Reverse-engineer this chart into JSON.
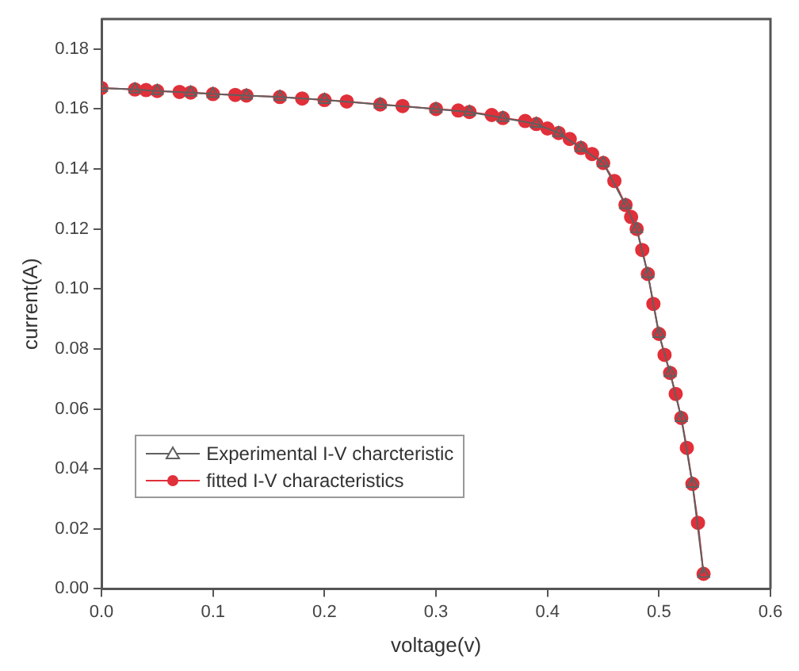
{
  "chart_data": {
    "type": "line",
    "xlabel": "voltage(v)",
    "ylabel": "current(A)",
    "xlim": [
      0,
      0.6
    ],
    "xticks": [
      {
        "value": 0,
        "label": "0.0"
      },
      0.1,
      0.2,
      0.3,
      0.4,
      0.5,
      {
        "value": 0.6,
        "label": "0.6"
      }
    ],
    "ylim": [
      0,
      0.19
    ],
    "yticks": [
      {
        "value": 0,
        "label": "0.00"
      },
      0.02,
      0.04,
      0.06,
      0.08,
      {
        "value": 0.1,
        "label": "0.10"
      },
      0.12,
      0.14,
      0.16,
      0.18
    ],
    "grid": false,
    "legend": "bottom left",
    "line_style": "solid",
    "series": [
      {
        "name": "Experimental I-V charcteristic",
        "color": "#606060",
        "marker": "triangle",
        "x": [
          0,
          0.03,
          0.05,
          0.08,
          0.1,
          0.13,
          0.16,
          0.2,
          0.25,
          0.3,
          0.33,
          0.36,
          0.39,
          0.41,
          0.43,
          0.45,
          0.47,
          0.48,
          0.49,
          0.5,
          0.51,
          0.52,
          0.53,
          0.54
        ],
        "values": [
          0.167,
          0.1665,
          0.166,
          0.1655,
          0.165,
          0.1645,
          0.164,
          0.163,
          0.1615,
          0.16,
          0.159,
          0.157,
          0.155,
          0.152,
          0.147,
          0.142,
          0.128,
          0.12,
          0.105,
          0.085,
          0.072,
          0.057,
          0.035,
          0.005
        ]
      },
      {
        "name": "fitted I-V characteristics",
        "color": "#e0303a",
        "marker": "circle",
        "x": [
          0,
          0.03,
          0.04,
          0.05,
          0.07,
          0.08,
          0.1,
          0.12,
          0.13,
          0.16,
          0.18,
          0.2,
          0.22,
          0.25,
          0.27,
          0.3,
          0.32,
          0.33,
          0.35,
          0.36,
          0.38,
          0.39,
          0.4,
          0.41,
          0.42,
          0.43,
          0.44,
          0.45,
          0.46,
          0.47,
          0.475,
          0.48,
          0.485,
          0.49,
          0.495,
          0.5,
          0.505,
          0.51,
          0.515,
          0.52,
          0.525,
          0.53,
          0.535,
          0.54
        ],
        "values": [
          0.167,
          0.1665,
          0.1663,
          0.166,
          0.1657,
          0.1655,
          0.165,
          0.1647,
          0.1645,
          0.164,
          0.1635,
          0.163,
          0.1625,
          0.1615,
          0.161,
          0.16,
          0.1595,
          0.159,
          0.158,
          0.157,
          0.156,
          0.155,
          0.1535,
          0.152,
          0.15,
          0.147,
          0.145,
          0.142,
          0.136,
          0.128,
          0.124,
          0.12,
          0.113,
          0.105,
          0.095,
          0.085,
          0.078,
          0.072,
          0.065,
          0.057,
          0.047,
          0.035,
          0.022,
          0.005
        ]
      }
    ]
  }
}
